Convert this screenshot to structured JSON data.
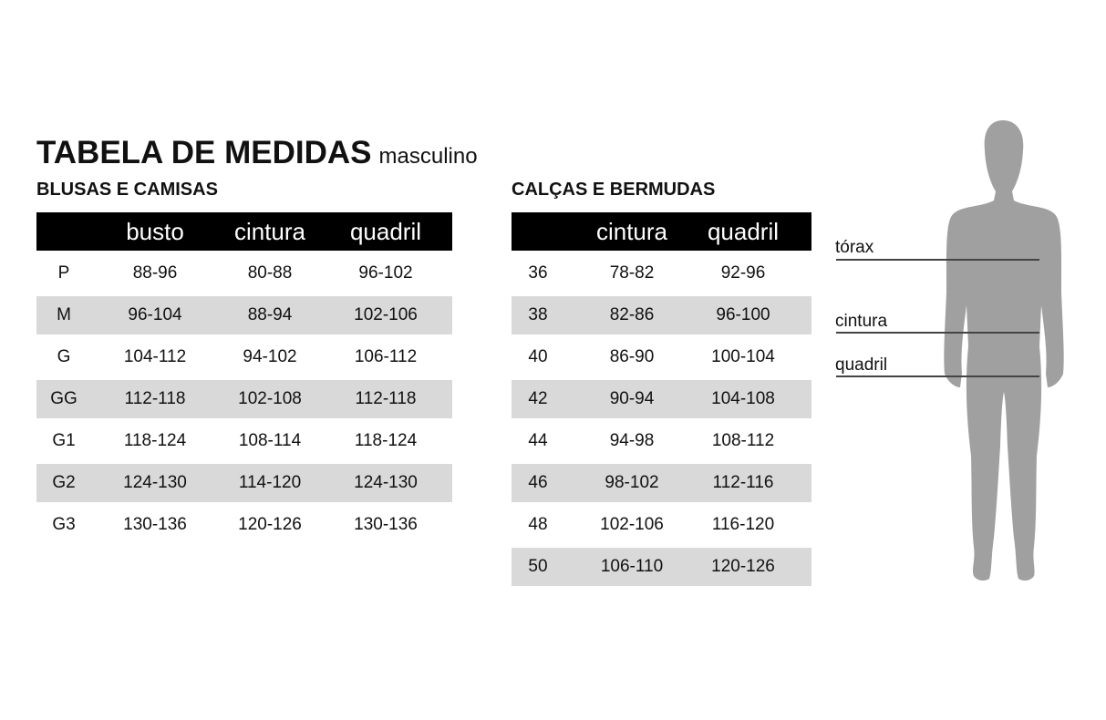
{
  "title": {
    "main": "TABELA DE MEDIDAS",
    "sub": "masculino"
  },
  "shirts": {
    "heading": "BLUSAS E CAMISAS",
    "columns": [
      "",
      "busto",
      "cintura",
      "quadril"
    ],
    "rows": [
      [
        "P",
        "88-96",
        "80-88",
        "96-102"
      ],
      [
        "M",
        "96-104",
        "88-94",
        "102-106"
      ],
      [
        "G",
        "104-112",
        "94-102",
        "106-112"
      ],
      [
        "GG",
        "112-118",
        "102-108",
        "112-118"
      ],
      [
        "G1",
        "118-124",
        "108-114",
        "118-124"
      ],
      [
        "G2",
        "124-130",
        "114-120",
        "124-130"
      ],
      [
        "G3",
        "130-136",
        "120-126",
        "130-136"
      ]
    ]
  },
  "pants": {
    "heading": "CALÇAS E BERMUDAS",
    "columns": [
      "",
      "cintura",
      "quadril"
    ],
    "rows": [
      [
        "36",
        "78-82",
        "92-96"
      ],
      [
        "38",
        "82-86",
        "96-100"
      ],
      [
        "40",
        "86-90",
        "100-104"
      ],
      [
        "42",
        "90-94",
        "104-108"
      ],
      [
        "44",
        "94-98",
        "108-112"
      ],
      [
        "46",
        "98-102",
        "112-116"
      ],
      [
        "48",
        "102-106",
        "116-120"
      ],
      [
        "50",
        "106-110",
        "120-126"
      ]
    ]
  },
  "figure": {
    "labels": [
      "tórax",
      "cintura",
      "quadril"
    ],
    "silhouette_color": "#a0a0a0",
    "header_color": "#000000",
    "stripe_color": "#d9d9d9"
  }
}
